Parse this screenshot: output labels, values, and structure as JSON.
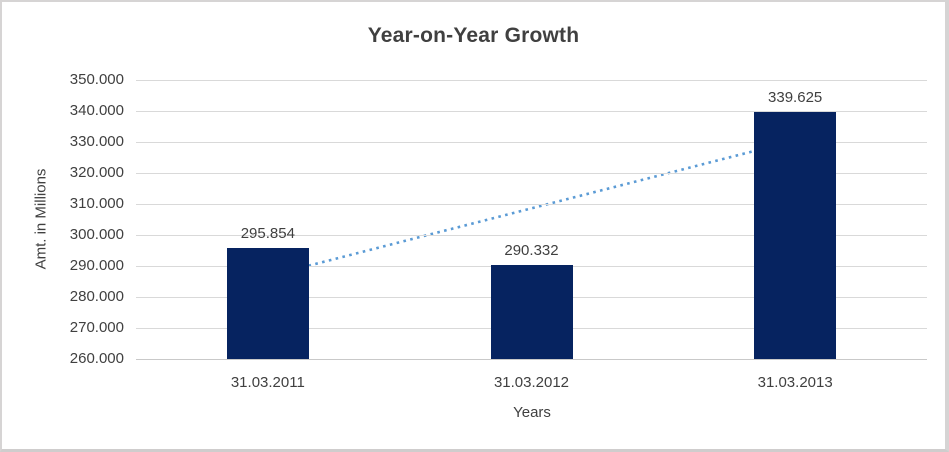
{
  "window": {
    "background": "#FFFFFF",
    "border_color": "#D6D4D4"
  },
  "chart_data": {
    "type": "bar",
    "title": "Year-on-Year Growth",
    "xlabel": "Years",
    "ylabel": "Amt. in Millions",
    "categories": [
      "31.03.2011",
      "31.03.2012",
      "31.03.2013"
    ],
    "values": [
      295.854,
      290.332,
      339.625
    ],
    "data_labels": [
      "295.854",
      "290.332",
      "339.625"
    ],
    "ylim": [
      260,
      350
    ],
    "y_tick_step": 10,
    "y_tick_labels": [
      "350.000",
      "340.000",
      "330.000",
      "320.000",
      "310.000",
      "300.000",
      "290.000",
      "280.000",
      "270.000",
      "260.000"
    ],
    "grid": true,
    "legend_position": "none",
    "bar_color": "#062360",
    "text_color": "#404040",
    "gridline_color": "#D9D9D9",
    "axis_line_color": "#C9C9C9",
    "trendline": {
      "type": "linear",
      "style": "dotted",
      "color": "#5B9BD5",
      "start_value": 286.72,
      "end_value": 330.49
    }
  }
}
